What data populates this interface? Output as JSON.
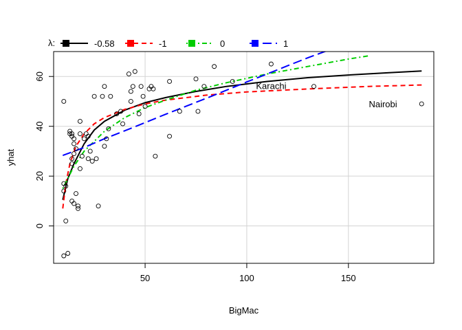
{
  "chart_data": {
    "type": "scatter",
    "xlabel": "BigMac",
    "ylabel": "yhat",
    "xlim": [
      5,
      192
    ],
    "ylim": [
      -15,
      70
    ],
    "xticks": [
      50,
      100,
      150
    ],
    "yticks": [
      0,
      20,
      40,
      60
    ],
    "grid": true,
    "legend": {
      "title": "λ:",
      "placement": "top, outside plot, horizontal",
      "entries": [
        {
          "label": "-0.58",
          "color": "#000000",
          "dash": "solid"
        },
        {
          "label": "-1",
          "color": "#ff0000",
          "dash": "dashed"
        },
        {
          "label": "0",
          "color": "#00cd00",
          "dash": "dotdash"
        },
        {
          "label": "1",
          "color": "#0000ff",
          "dash": "longdash"
        }
      ]
    },
    "points": [
      [
        10,
        -12
      ],
      [
        12,
        -11
      ],
      [
        11,
        2
      ],
      [
        10,
        14
      ],
      [
        10,
        17
      ],
      [
        11,
        16
      ],
      [
        10,
        50
      ],
      [
        13,
        37
      ],
      [
        13,
        38
      ],
      [
        14,
        37
      ],
      [
        14,
        36
      ],
      [
        15,
        35
      ],
      [
        15,
        33
      ],
      [
        14,
        27
      ],
      [
        14,
        25
      ],
      [
        15,
        29
      ],
      [
        16,
        31
      ],
      [
        15,
        9
      ],
      [
        14,
        10
      ],
      [
        16,
        13
      ],
      [
        17,
        8
      ],
      [
        17,
        7
      ],
      [
        18,
        42
      ],
      [
        18,
        37
      ],
      [
        18,
        23
      ],
      [
        19,
        28
      ],
      [
        20,
        35
      ],
      [
        21,
        37
      ],
      [
        22,
        36
      ],
      [
        23,
        30
      ],
      [
        22,
        27
      ],
      [
        24,
        26
      ],
      [
        25,
        52
      ],
      [
        26,
        27
      ],
      [
        27,
        8
      ],
      [
        29,
        52
      ],
      [
        30,
        56
      ],
      [
        30,
        32
      ],
      [
        31,
        35
      ],
      [
        32,
        39
      ],
      [
        33,
        52
      ],
      [
        36,
        45
      ],
      [
        38,
        46
      ],
      [
        39,
        41
      ],
      [
        42,
        61
      ],
      [
        43,
        50
      ],
      [
        43,
        54
      ],
      [
        44,
        56
      ],
      [
        45,
        62
      ],
      [
        47,
        45
      ],
      [
        48,
        56
      ],
      [
        49,
        52
      ],
      [
        50,
        48
      ],
      [
        52,
        55
      ],
      [
        53,
        56
      ],
      [
        54,
        55
      ],
      [
        55,
        28
      ],
      [
        62,
        58
      ],
      [
        62,
        36
      ],
      [
        67,
        46
      ],
      [
        75,
        59
      ],
      [
        76,
        46
      ],
      [
        79,
        56
      ],
      [
        84,
        64
      ],
      [
        93,
        58
      ],
      [
        112,
        65
      ],
      [
        133,
        56
      ],
      [
        186,
        49
      ]
    ],
    "series": [
      {
        "name": "-0.58",
        "color": "#000000",
        "x": [
          9.5,
          12,
          15,
          20,
          25,
          30,
          40,
          50,
          60,
          75,
          90,
          110,
          130,
          150,
          170,
          186
        ],
        "y": [
          10.5,
          19,
          25,
          33,
          38.5,
          42,
          46.5,
          49.5,
          51.5,
          54,
          56,
          58,
          59.5,
          60.6,
          61.5,
          62.2
        ]
      },
      {
        "name": "-1",
        "color": "#ff0000",
        "x": [
          9.5,
          11,
          13,
          16,
          20,
          25,
          30,
          40,
          50,
          60,
          80,
          100,
          130,
          160,
          186
        ],
        "y": [
          7,
          17,
          25,
          32,
          37,
          41,
          43.5,
          46.8,
          49,
          50.5,
          52.5,
          53.8,
          55,
          56,
          56.6
        ]
      },
      {
        "name": "0",
        "color": "#00cd00",
        "x": [
          9.5,
          15,
          20,
          30,
          40,
          50,
          60,
          75,
          90,
          110,
          130,
          150,
          160
        ],
        "y": [
          15,
          24,
          30,
          38,
          43.5,
          47.5,
          50.5,
          54.5,
          57.5,
          61,
          64,
          67,
          68.3
        ]
      },
      {
        "name": "1",
        "color": "#0000ff",
        "x": [
          9.5,
          20,
          30,
          40,
          50,
          60,
          70,
          80,
          90,
          100,
          110,
          120,
          130,
          140
        ],
        "y": [
          28.3,
          31.5,
          35,
          38.2,
          41.5,
          44.8,
          48,
          51.2,
          54.5,
          57.8,
          61,
          64.3,
          67.5,
          70.5
        ]
      }
    ],
    "annotations": [
      {
        "text": "Karachi",
        "x": 112,
        "y": 56.3
      },
      {
        "text": "Nairobi",
        "x": 167,
        "y": 49
      }
    ]
  }
}
